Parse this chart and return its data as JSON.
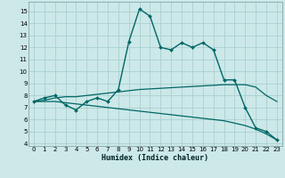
{
  "xlabel": "Humidex (Indice chaleur)",
  "background_color": "#cce8e8",
  "grid_color": "#aacfcf",
  "line_color": "#006666",
  "xlim": [
    -0.5,
    23.5
  ],
  "ylim": [
    3.8,
    15.8
  ],
  "xticks": [
    0,
    1,
    2,
    3,
    4,
    5,
    6,
    7,
    8,
    9,
    10,
    11,
    12,
    13,
    14,
    15,
    16,
    17,
    18,
    19,
    20,
    21,
    22,
    23
  ],
  "yticks": [
    4,
    5,
    6,
    7,
    8,
    9,
    10,
    11,
    12,
    13,
    14,
    15
  ],
  "series": [
    {
      "x": [
        0,
        1,
        2,
        3,
        4,
        5,
        6,
        7,
        8,
        9,
        10,
        11,
        12,
        13,
        14,
        15,
        16,
        17,
        18,
        19,
        20,
        21,
        22,
        23
      ],
      "y": [
        7.5,
        7.8,
        8.0,
        7.2,
        6.8,
        7.5,
        7.8,
        7.5,
        8.5,
        12.5,
        15.2,
        14.6,
        12.0,
        11.8,
        12.4,
        12.0,
        12.4,
        11.8,
        9.3,
        9.3,
        7.0,
        5.3,
        5.0,
        4.3
      ],
      "marker": true,
      "linewidth": 1.0
    },
    {
      "x": [
        0,
        1,
        2,
        3,
        4,
        5,
        6,
        7,
        8,
        9,
        10,
        11,
        12,
        13,
        14,
        15,
        16,
        17,
        18,
        19,
        20,
        21,
        22,
        23
      ],
      "y": [
        7.5,
        7.6,
        7.8,
        7.9,
        7.9,
        8.0,
        8.1,
        8.2,
        8.3,
        8.4,
        8.5,
        8.55,
        8.6,
        8.65,
        8.7,
        8.75,
        8.8,
        8.85,
        8.9,
        8.9,
        8.9,
        8.7,
        8.0,
        7.5
      ],
      "marker": false,
      "linewidth": 0.9
    },
    {
      "x": [
        0,
        1,
        2,
        3,
        4,
        5,
        6,
        7,
        8,
        9,
        10,
        11,
        12,
        13,
        14,
        15,
        16,
        17,
        18,
        19,
        20,
        21,
        22,
        23
      ],
      "y": [
        7.5,
        7.5,
        7.5,
        7.4,
        7.3,
        7.2,
        7.1,
        7.0,
        6.9,
        6.8,
        6.7,
        6.6,
        6.5,
        6.4,
        6.3,
        6.2,
        6.1,
        6.0,
        5.9,
        5.7,
        5.5,
        5.2,
        4.8,
        4.3
      ],
      "marker": false,
      "linewidth": 0.9
    }
  ]
}
